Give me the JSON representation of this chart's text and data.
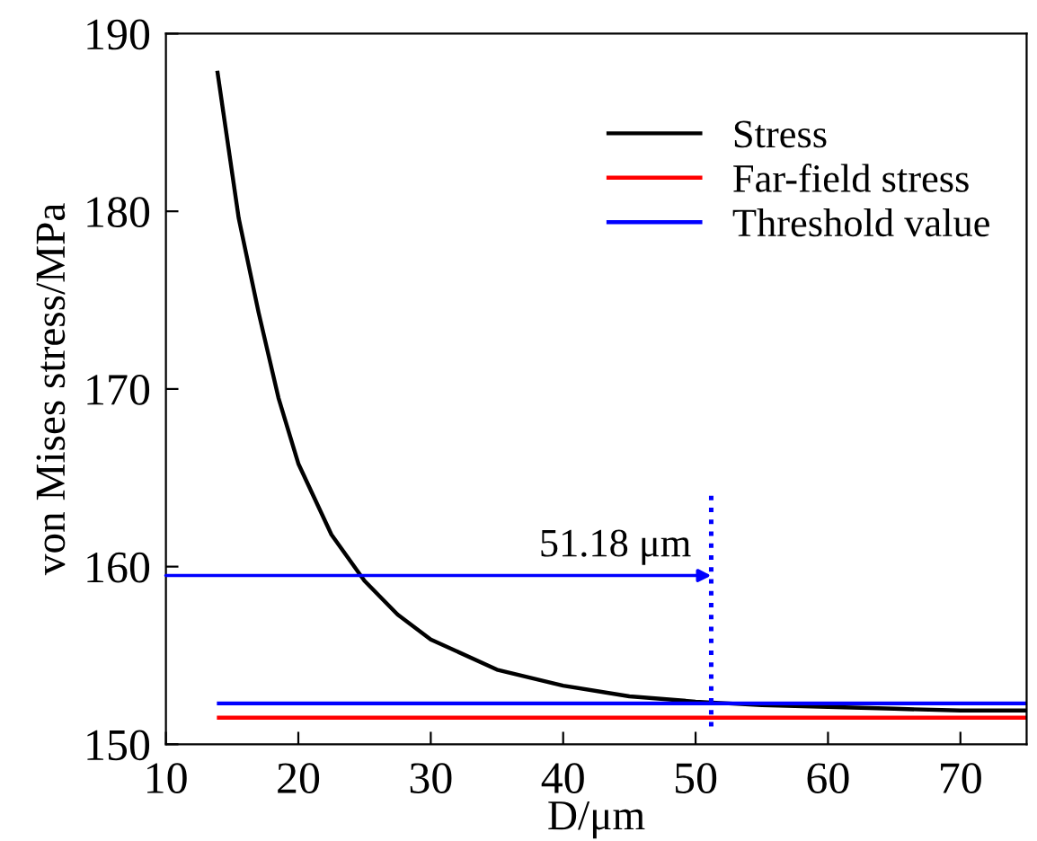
{
  "chart_data": {
    "type": "line",
    "xlabel": "D/μm",
    "ylabel": "von Mises stress/MPa",
    "xlim": [
      10,
      75
    ],
    "ylim": [
      150,
      190
    ],
    "xticks": [
      10,
      20,
      30,
      40,
      50,
      60,
      70
    ],
    "yticks": [
      150,
      160,
      170,
      180,
      190
    ],
    "grid": false,
    "legend": "top right",
    "line_style": "solid",
    "marker": "none",
    "series": [
      {
        "name": "Stress",
        "color": "#000000",
        "x": [
          13.9,
          15.5,
          17,
          18.5,
          20,
          22.5,
          25,
          27.5,
          30,
          35,
          40,
          45,
          50,
          55,
          60,
          65,
          70,
          75
        ],
        "values": [
          187.8,
          179.6,
          174.3,
          169.5,
          165.8,
          161.8,
          159.2,
          157.3,
          155.9,
          154.2,
          153.3,
          152.7,
          152.4,
          152.2,
          152.1,
          152.0,
          151.9,
          151.9
        ]
      },
      {
        "name": "Far-field stress",
        "color": "#ff0000",
        "x": [
          14,
          75
        ],
        "values": [
          151.5,
          151.5
        ]
      },
      {
        "name": "Threshold value",
        "color": "#0000ff",
        "x": [
          14,
          75
        ],
        "values": [
          152.3,
          152.3
        ]
      }
    ],
    "ref_lines": [
      {
        "axis": "x",
        "value": 51.18,
        "color": "#0000ff",
        "line_style": "dotted"
      }
    ],
    "annotations": [
      {
        "text": "51.18 μm",
        "x": 51.18,
        "y": 159.5
      }
    ]
  }
}
